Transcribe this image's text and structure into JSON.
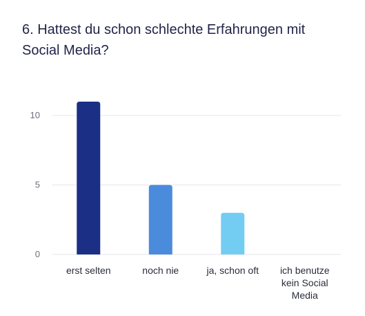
{
  "title": "6. Hattest du schon schlechte Erfahrungen mit Social Media?",
  "chart_data": {
    "type": "bar",
    "title": "6. Hattest du schon schlechte Erfahrungen mit Social Media?",
    "categories": [
      "erst selten",
      "noch nie",
      "ja, schon oft",
      "ich benutze kein Social Media"
    ],
    "category_lines": [
      [
        "erst selten"
      ],
      [
        "noch nie"
      ],
      [
        "ja, schon oft"
      ],
      [
        "ich benutze",
        "kein Social",
        "Media"
      ]
    ],
    "values": [
      11,
      5,
      3,
      0
    ],
    "bar_colors": [
      "#1b2f85",
      "#4a8bdc",
      "#73ccf2",
      "#b9e7fa"
    ],
    "yticks": [
      0,
      5,
      10
    ],
    "ylim": [
      0,
      11.2
    ],
    "grid": true,
    "gridline_color": "#e6e6ea",
    "xlabel": "",
    "ylabel": ""
  }
}
